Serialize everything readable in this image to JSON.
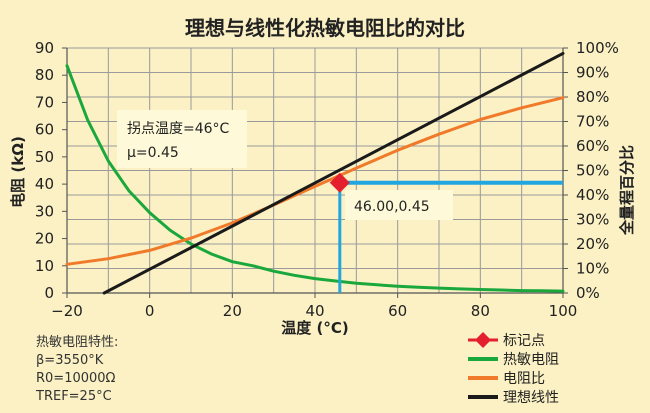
{
  "chart_data": {
    "type": "line",
    "title": "理想与线性化热敏电阻比的对比",
    "xlabel": "温度 (°C)",
    "ylabel_left": "电阻 (kΩ)",
    "ylabel_right": "全量程百分比",
    "xlim": [
      -20,
      100
    ],
    "ylim_left": [
      0,
      90
    ],
    "ylim_right": [
      0,
      100
    ],
    "x_ticks": [
      "−20",
      "0",
      "20",
      "40",
      "60",
      "80",
      "100"
    ],
    "y_left_ticks": [
      "0",
      "10",
      "20",
      "30",
      "40",
      "50",
      "60",
      "70",
      "80",
      "90"
    ],
    "y_right_ticks": [
      "0%",
      "10%",
      "20%",
      "30%",
      "40%",
      "50%",
      "60%",
      "70%",
      "80%",
      "90%",
      "100%"
    ],
    "grid": true,
    "series": [
      {
        "name": "热敏电阻",
        "axis": "left",
        "color": "#1aa83c",
        "x": [
          -20,
          -15,
          -10,
          -5,
          0,
          5,
          10,
          15,
          20,
          25,
          30,
          35,
          40,
          45,
          50,
          55,
          60,
          65,
          70,
          75,
          80,
          85,
          90,
          95,
          100
        ],
        "y": [
          83.5,
          63.5,
          48.5,
          37.5,
          29.5,
          23.0,
          18.0,
          14.3,
          11.5,
          10.0,
          8.0,
          6.5,
          5.3,
          4.4,
          3.6,
          3.0,
          2.5,
          2.1,
          1.8,
          1.5,
          1.3,
          1.1,
          0.9,
          0.8,
          0.7
        ]
      },
      {
        "name": "电阻比",
        "axis": "right",
        "color": "#f07a2a",
        "x": [
          -20,
          -10,
          0,
          10,
          20,
          30,
          40,
          50,
          60,
          70,
          80,
          90,
          100
        ],
        "y": [
          11.7,
          14.0,
          17.4,
          22.4,
          28.6,
          35.9,
          43.5,
          51.0,
          58.3,
          64.8,
          70.8,
          75.6,
          79.7
        ]
      },
      {
        "name": "理想线性",
        "axis": "right",
        "color": "#1a1a1a",
        "x": [
          -11,
          100
        ],
        "y": [
          0,
          97.8
        ]
      }
    ],
    "marker": {
      "name": "标记点",
      "x": 46,
      "y": 45,
      "axis": "right",
      "color": "#e4202e"
    },
    "guide_color": "#21a6df",
    "annotations": {
      "inflection": [
        "拐点温度=46°C",
        "μ=0.45"
      ],
      "point_label": "46.00,0.45",
      "thermistor_props": [
        "热敏电阻特性:",
        "β=3550°K",
        "R0=10000Ω",
        "TREF=25°C"
      ]
    },
    "legend": {
      "placement": "bottom-right",
      "items": [
        {
          "label": "标记点",
          "kind": "marker",
          "color": "#e4202e"
        },
        {
          "label": "热敏电阻",
          "kind": "line",
          "color": "#1aa83c"
        },
        {
          "label": "电阻比",
          "kind": "line",
          "color": "#f07a2a"
        },
        {
          "label": "理想线性",
          "kind": "line",
          "color": "#1a1a1a"
        }
      ]
    },
    "colors": {
      "background": "#fbf1c4",
      "plot_background": "#fbf1c4",
      "grid": "#9a9a9a",
      "annotation_box": "#fefad9"
    }
  }
}
